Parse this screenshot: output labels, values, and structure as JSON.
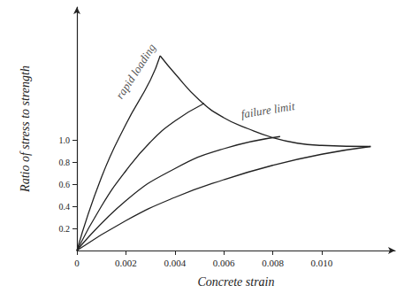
{
  "chart_data": {
    "type": "line",
    "xlabel": "Concrete strain",
    "ylabel": "Ratio of stress to strength",
    "xlim": [
      0,
      0.013
    ],
    "ylim": [
      0,
      2.2
    ],
    "xticks": [
      0,
      0.002,
      0.004,
      0.006,
      0.008,
      {
        "value": 0.01,
        "label": "0.010"
      }
    ],
    "yticks": [
      0.2,
      0.4,
      0.6,
      0.8,
      {
        "value": 1,
        "label": "1.0"
      }
    ],
    "grid": false,
    "color": "#222222",
    "series": [
      {
        "x": [
          0,
          0.001,
          0.002,
          0.003,
          0.0034
        ],
        "values": [
          0,
          0.66,
          1.14,
          1.54,
          1.76
        ]
      },
      {
        "x": [
          0.0034,
          0.004,
          0.005,
          0.006,
          0.007,
          0.008,
          0.009,
          0.01,
          0.012
        ],
        "values": [
          1.76,
          1.6,
          1.36,
          1.2,
          1.1,
          1.02,
          0.97,
          0.95,
          0.94
        ]
      },
      {
        "x": [
          0,
          0.001,
          0.002,
          0.003,
          0.004,
          0.0052
        ],
        "values": [
          0,
          0.4,
          0.72,
          0.98,
          1.17,
          1.33
        ]
      },
      {
        "x": [
          0,
          0.002,
          0.004,
          0.006,
          0.0083
        ],
        "values": [
          0,
          0.45,
          0.74,
          0.92,
          1.03
        ]
      },
      {
        "x": [
          0,
          0.002,
          0.004,
          0.006,
          0.008,
          0.01,
          0.012
        ],
        "values": [
          0,
          0.27,
          0.48,
          0.64,
          0.77,
          0.87,
          0.94
        ]
      }
    ],
    "annotations": [
      {
        "text": "rapid loading",
        "x": 0.0024,
        "y": 1.62
      },
      {
        "text": "failure limit",
        "x": 0.0078,
        "y": 1.27
      }
    ]
  }
}
